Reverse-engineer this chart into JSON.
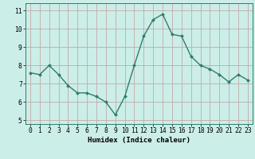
{
  "x": [
    0,
    1,
    2,
    3,
    4,
    5,
    6,
    7,
    8,
    9,
    10,
    11,
    12,
    13,
    14,
    15,
    16,
    17,
    18,
    19,
    20,
    21,
    22,
    23
  ],
  "y": [
    7.6,
    7.5,
    8.0,
    7.5,
    6.9,
    6.5,
    6.5,
    6.3,
    6.0,
    5.3,
    6.3,
    8.0,
    9.6,
    10.5,
    10.8,
    9.7,
    9.6,
    8.5,
    8.0,
    7.8,
    7.5,
    7.1,
    7.5,
    7.2
  ],
  "line_color": "#2e7d6e",
  "marker": "D",
  "marker_size": 2.0,
  "bg_color": "#cceee8",
  "grid_color": "#c4a8a8",
  "xlabel": "Humidex (Indice chaleur)",
  "ylim": [
    4.8,
    11.4
  ],
  "xlim": [
    -0.5,
    23.5
  ],
  "yticks": [
    5,
    6,
    7,
    8,
    9,
    10,
    11
  ],
  "xticks": [
    0,
    1,
    2,
    3,
    4,
    5,
    6,
    7,
    8,
    9,
    10,
    11,
    12,
    13,
    14,
    15,
    16,
    17,
    18,
    19,
    20,
    21,
    22,
    23
  ],
  "xlabel_fontsize": 6.5,
  "tick_fontsize": 5.8,
  "line_width": 1.0
}
